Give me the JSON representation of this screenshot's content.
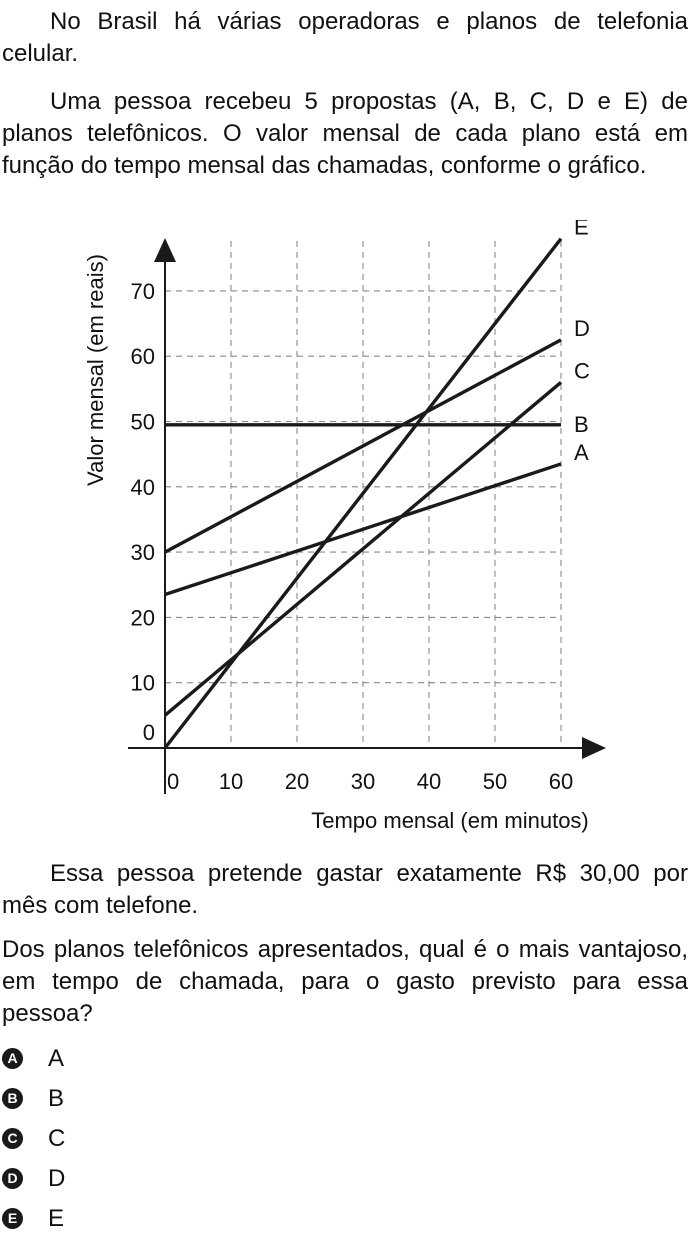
{
  "paragraphs": {
    "intro": "No Brasil há várias operadoras e planos de telefonia celular.",
    "context": "Uma pessoa recebeu 5 propostas (A, B, C, D e E) de planos telefônicos. O valor mensal de cada plano está em função do tempo mensal das chamadas, conforme o gráfico.",
    "budget": "Essa pessoa pretende gastar exatamente R$ 30,00 por mês com telefone.",
    "question": "Dos planos telefônicos apresentados, qual é o mais vantajoso, em tempo de chamada, para o gasto previsto para essa pessoa?"
  },
  "chart_data": {
    "type": "line",
    "xlabel": "Tempo mensal (em minutos)",
    "ylabel": "Valor mensal (em reais)",
    "xlim": [
      0,
      60
    ],
    "ylim": [
      0,
      70
    ],
    "x_ticks": [
      "0",
      "10",
      "20",
      "30",
      "40",
      "50",
      "60"
    ],
    "y_ticks": [
      "0",
      "10",
      "20",
      "30",
      "40",
      "50",
      "60",
      "70"
    ],
    "grid": "dashed",
    "series": [
      {
        "name": "A",
        "x": [
          0,
          60
        ],
        "y": [
          23.5,
          43.5
        ]
      },
      {
        "name": "B",
        "x": [
          0,
          60
        ],
        "y": [
          49.5,
          49.5
        ]
      },
      {
        "name": "C",
        "x": [
          0,
          60
        ],
        "y": [
          5,
          56
        ]
      },
      {
        "name": "D",
        "x": [
          0,
          60
        ],
        "y": [
          30,
          62.5
        ]
      },
      {
        "name": "E",
        "x": [
          0,
          60
        ],
        "y": [
          0,
          78
        ]
      }
    ]
  },
  "options": [
    {
      "letter": "A",
      "text": "A"
    },
    {
      "letter": "B",
      "text": "B"
    },
    {
      "letter": "C",
      "text": "C"
    },
    {
      "letter": "D",
      "text": "D"
    },
    {
      "letter": "E",
      "text": "E"
    }
  ]
}
